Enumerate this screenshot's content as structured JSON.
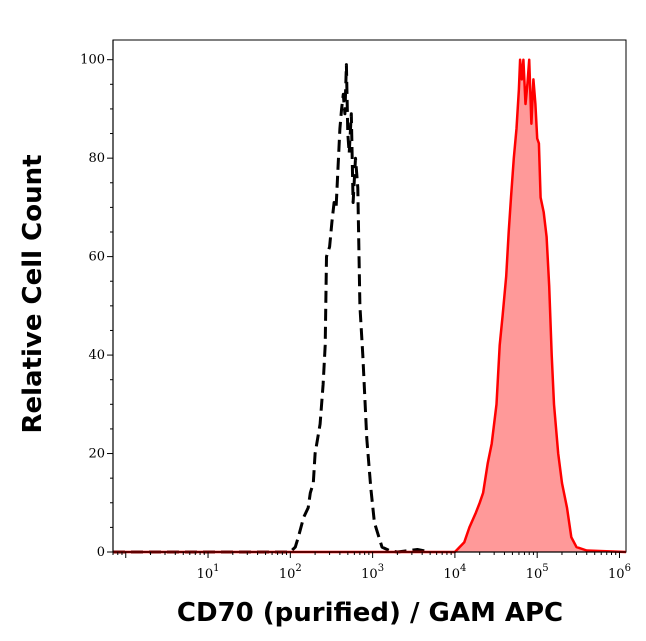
{
  "chart_data": {
    "type": "area",
    "title": "",
    "xlabel": "CD70 (purified) / GAM APC",
    "ylabel": "Relative Cell Count",
    "xscale": "log",
    "xlim": [
      0.7,
      1200000
    ],
    "ylim": [
      0,
      104
    ],
    "grid": false,
    "x_tick_labels": [
      {
        "base": "10",
        "exp": "1",
        "value": 10
      },
      {
        "base": "10",
        "exp": "2",
        "value": 100
      },
      {
        "base": "10",
        "exp": "3",
        "value": 1000
      },
      {
        "base": "10",
        "exp": "4",
        "value": 10000
      },
      {
        "base": "10",
        "exp": "5",
        "value": 100000
      },
      {
        "base": "10",
        "exp": "6",
        "value": 1000000
      }
    ],
    "y_ticks": [
      0,
      20,
      40,
      60,
      80,
      100
    ],
    "series": [
      {
        "style": "dashed-line",
        "color": "#000000",
        "x": [
          0.7,
          100,
          115,
          125,
          145,
          165,
          175,
          190,
          200,
          230,
          250,
          265,
          275,
          300,
          320,
          340,
          360,
          380,
          400,
          420,
          440,
          460,
          480,
          500,
          520,
          550,
          580,
          620,
          660,
          700,
          760,
          850,
          950,
          1050,
          1300,
          1600,
          2000,
          3500,
          5000
        ],
        "y": [
          0,
          0,
          1,
          3,
          7,
          9,
          12,
          14,
          20,
          26,
          34,
          42,
          60,
          62,
          67,
          71,
          70,
          78,
          86,
          90,
          93,
          89,
          99,
          85,
          81,
          89,
          71,
          80,
          74,
          50,
          40,
          23,
          13,
          6,
          1,
          0.3,
          0,
          0.5,
          0
        ]
      },
      {
        "style": "filled",
        "color": "#ff0000",
        "fill": "#ff9999",
        "x": [
          0.7,
          10000,
          13000,
          15000,
          18000,
          20000,
          22000,
          25000,
          28000,
          32000,
          35000,
          38000,
          42000,
          45000,
          48000,
          52000,
          56000,
          60000,
          62000,
          65000,
          68000,
          72000,
          76000,
          80000,
          85000,
          90000,
          95000,
          100000,
          105000,
          110000,
          120000,
          130000,
          140000,
          150000,
          160000,
          180000,
          200000,
          230000,
          260000,
          300000,
          400000,
          1200000
        ],
        "y": [
          0,
          0,
          2,
          5,
          8,
          10,
          12,
          18,
          22,
          30,
          42,
          48,
          56,
          65,
          72,
          80,
          86,
          94,
          100,
          96,
          100,
          91,
          95,
          100,
          87,
          96,
          91,
          84,
          83,
          72,
          69,
          64,
          54,
          40,
          30,
          20,
          14,
          9,
          3,
          1,
          0.3,
          0
        ]
      }
    ]
  }
}
